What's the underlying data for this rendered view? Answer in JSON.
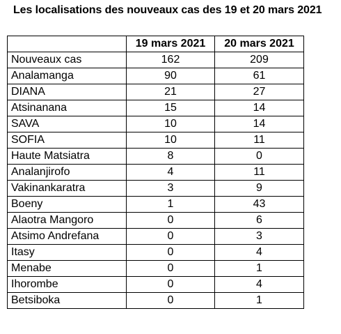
{
  "title": "Les localisations des nouveaux cas des 19 et 20 mars 2021",
  "table": {
    "headers": [
      "",
      "19 mars 2021",
      "20 mars 2021"
    ],
    "rows": [
      {
        "label": "Nouveaux cas",
        "v1": "162",
        "v2": "209"
      },
      {
        "label": "Analamanga",
        "v1": "90",
        "v2": "61"
      },
      {
        "label": "DIANA",
        "v1": "21",
        "v2": "27"
      },
      {
        "label": "Atsinanana",
        "v1": "15",
        "v2": "14"
      },
      {
        "label": "SAVA",
        "v1": "10",
        "v2": "14"
      },
      {
        "label": "SOFIA",
        "v1": "10",
        "v2": "11"
      },
      {
        "label": "Haute Matsiatra",
        "v1": "8",
        "v2": "0"
      },
      {
        "label": "Analanjirofo",
        "v1": "4",
        "v2": "11"
      },
      {
        "label": "Vakinankaratra",
        "v1": "3",
        "v2": "9"
      },
      {
        "label": "Boeny",
        "v1": "1",
        "v2": "43"
      },
      {
        "label": "Alaotra Mangoro",
        "v1": "0",
        "v2": "6"
      },
      {
        "label": "Atsimo Andrefana",
        "v1": "0",
        "v2": "3"
      },
      {
        "label": "Itasy",
        "v1": "0",
        "v2": "4"
      },
      {
        "label": "Menabe",
        "v1": "0",
        "v2": "1"
      },
      {
        "label": "Ihorombe",
        "v1": "0",
        "v2": "4"
      },
      {
        "label": "Betsiboka",
        "v1": "0",
        "v2": "1"
      }
    ]
  }
}
